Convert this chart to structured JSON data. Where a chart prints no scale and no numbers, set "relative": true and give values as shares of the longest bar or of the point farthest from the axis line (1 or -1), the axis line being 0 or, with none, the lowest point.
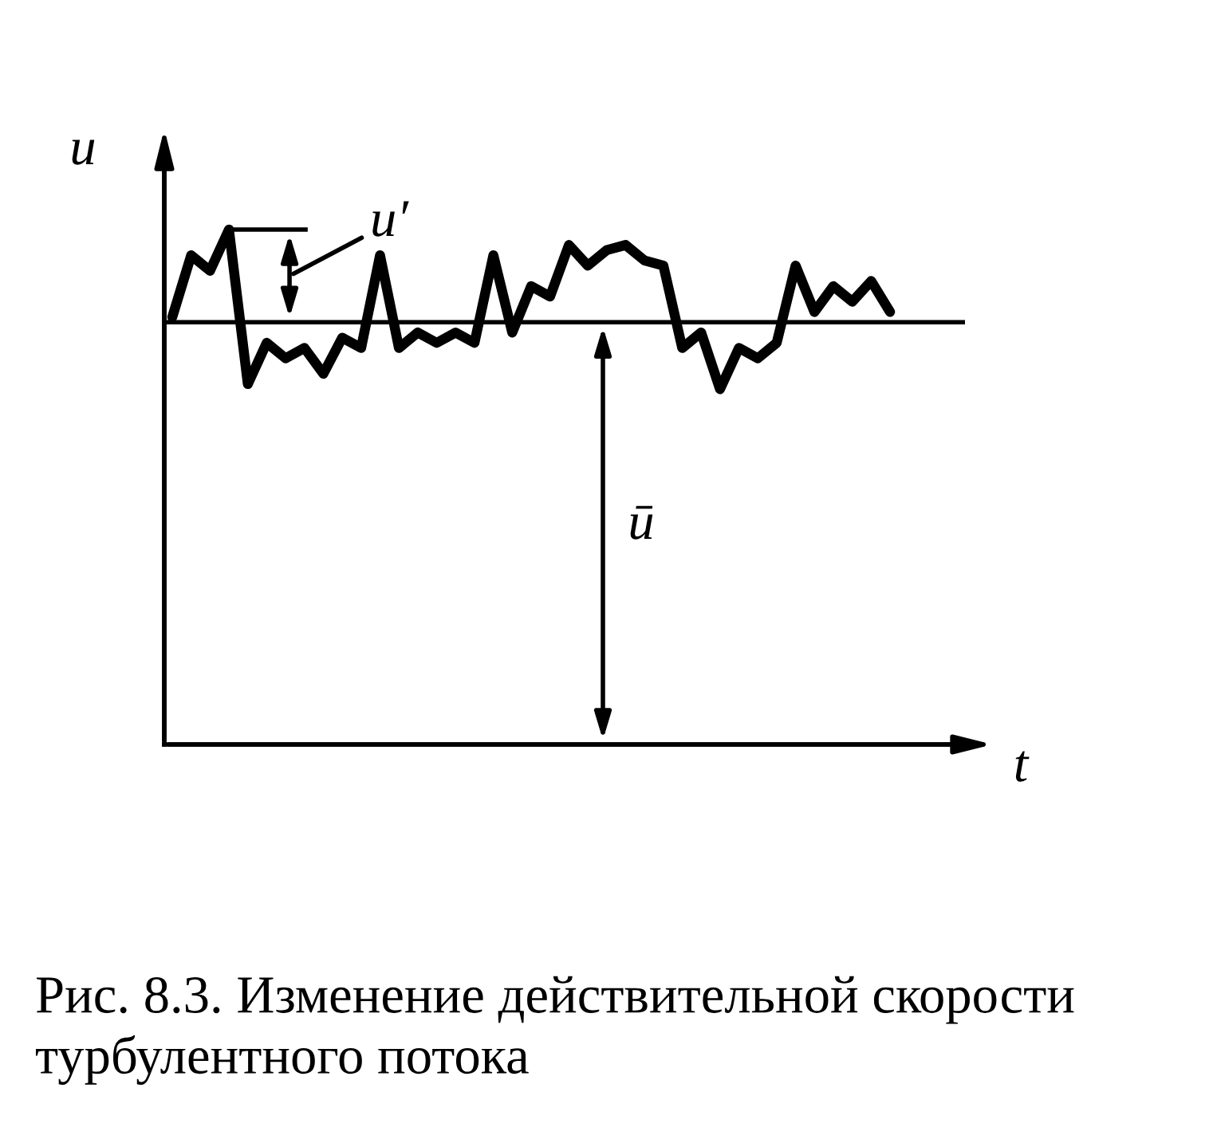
{
  "chart_data": {
    "type": "line",
    "relative": true,
    "xlabel": "t",
    "ylabel": "u",
    "tick_labels": false,
    "categories": [
      null,
      null,
      null,
      null,
      null,
      null,
      null,
      null,
      null,
      null,
      null,
      null,
      null,
      null,
      null,
      null,
      null,
      null,
      null,
      null,
      null,
      null,
      null,
      null,
      null,
      null,
      null,
      null,
      null,
      null,
      null,
      null,
      null,
      null,
      null,
      null,
      null,
      null,
      null
    ],
    "series": [
      {
        "color": "#000000",
        "values": [
          0.83,
          0.95,
          0.92,
          1,
          0.7,
          0.78,
          0.75,
          0.77,
          0.72,
          0.79,
          0.77,
          0.95,
          0.77,
          0.8,
          0.78,
          0.8,
          0.78,
          0.95,
          0.8,
          0.89,
          0.87,
          0.97,
          0.93,
          0.96,
          0.97,
          0.94,
          0.93,
          0.77,
          0.8,
          0.69,
          0.77,
          0.75,
          0.78,
          0.93,
          0.84,
          0.89,
          0.86,
          0.9,
          0.84
        ]
      }
    ],
    "ref_lines": [
      {
        "axis": "y",
        "value": 0.82,
        "color": "#000000"
      }
    ],
    "annotations": [
      "u′",
      "ū",
      "Рис. 8.3. Изменение действительной скорости турбулентного потока"
    ]
  }
}
